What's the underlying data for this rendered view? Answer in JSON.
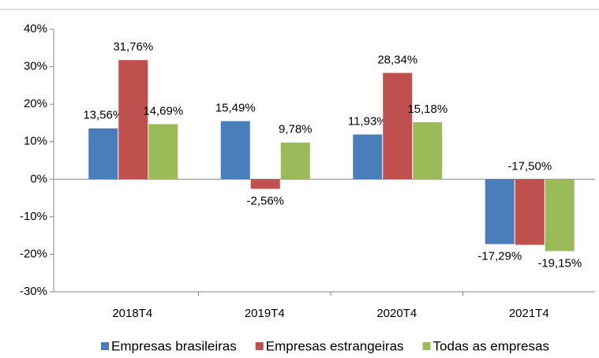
{
  "chart_data": {
    "type": "bar",
    "categories": [
      "2018T4",
      "2019T4",
      "2020T4",
      "2021T4"
    ],
    "series": [
      {
        "name": "Empresas brasileiras",
        "color": "#4a7ebb",
        "values": [
          13.56,
          15.49,
          11.93,
          -17.29
        ],
        "value_labels": [
          "13,56%",
          "15,49%",
          "11,93%",
          "-17,29%"
        ]
      },
      {
        "name": "Empresas estrangeiras",
        "color": "#c0504d",
        "values": [
          31.76,
          -2.56,
          28.34,
          -17.5
        ],
        "value_labels": [
          "31,76%",
          "-2,56%",
          "28,34%",
          "-17,50%"
        ]
      },
      {
        "name": "Todas as empresas",
        "color": "#9bbb59",
        "values": [
          14.69,
          9.78,
          15.18,
          -19.15
        ],
        "value_labels": [
          "14,69%",
          "9,78%",
          "15,18%",
          "-19,15%"
        ]
      }
    ],
    "ylim": [
      -30,
      40
    ],
    "yticks": [
      {
        "value": -30,
        "label": "-30%"
      },
      {
        "value": -20,
        "label": "-20%"
      },
      {
        "value": -10,
        "label": "-10%"
      },
      {
        "value": 0,
        "label": "0%"
      },
      {
        "value": 10,
        "label": "10%"
      },
      {
        "value": 20,
        "label": "20%"
      },
      {
        "value": 30,
        "label": "30%"
      },
      {
        "value": 40,
        "label": "40%"
      }
    ],
    "legend": "bottom",
    "grid": false
  }
}
